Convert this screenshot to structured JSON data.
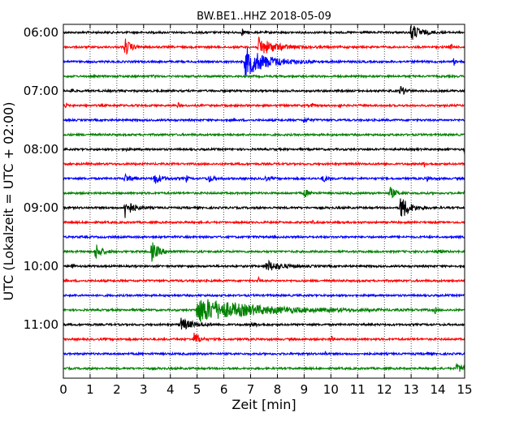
{
  "chart_data": {
    "type": "line",
    "title": "BW.BE1..HHZ 2018-05-09",
    "xlabel": "Zeit  [min]",
    "ylabel": "UTC (Lokalzeit = UTC + 02:00)",
    "xlim": [
      0,
      15
    ],
    "x_ticks": [
      "0",
      "1",
      "2",
      "3",
      "4",
      "5",
      "6",
      "7",
      "8",
      "9",
      "10",
      "11",
      "12",
      "13",
      "14",
      "15"
    ],
    "y_ticks": [
      {
        "label": "06:00",
        "trace_index": 0
      },
      {
        "label": "07:00",
        "trace_index": 4
      },
      {
        "label": "08:00",
        "trace_index": 8
      },
      {
        "label": "09:00",
        "trace_index": 12
      },
      {
        "label": "10:00",
        "trace_index": 16
      },
      {
        "label": "11:00",
        "trace_index": 20
      }
    ],
    "grid": "vertical-dotted",
    "colors": [
      "#000000",
      "#ff0000",
      "#0000ff",
      "#008000"
    ],
    "series": [
      {
        "start": "06:00",
        "color": "#000000",
        "events": [
          {
            "t": 6.7,
            "amp": 0.5,
            "dur": 0.1
          },
          {
            "t": 13.0,
            "amp": 1.0,
            "dur": 0.6
          }
        ]
      },
      {
        "start": "06:15",
        "color": "#ff0000",
        "events": [
          {
            "t": 2.3,
            "amp": 1.0,
            "dur": 0.4
          },
          {
            "t": 7.3,
            "amp": 1.0,
            "dur": 1.2
          },
          {
            "t": 14.5,
            "amp": 0.4,
            "dur": 0.1
          }
        ]
      },
      {
        "start": "06:30",
        "color": "#0000ff",
        "events": [
          {
            "t": 6.8,
            "amp": 1.6,
            "dur": 1.6
          },
          {
            "t": 14.6,
            "amp": 0.4,
            "dur": 0.1
          }
        ]
      },
      {
        "start": "06:45",
        "color": "#008000",
        "events": [
          {
            "t": 3.4,
            "amp": 0.3,
            "dur": 0.05
          }
        ]
      },
      {
        "start": "07:00",
        "color": "#000000",
        "events": [
          {
            "t": 0.3,
            "amp": 0.4,
            "dur": 0.1
          },
          {
            "t": 12.6,
            "amp": 0.6,
            "dur": 0.3
          }
        ]
      },
      {
        "start": "07:15",
        "color": "#ff0000",
        "events": [
          {
            "t": 0.1,
            "amp": 0.4,
            "dur": 0.05
          },
          {
            "t": 4.3,
            "amp": 0.3,
            "dur": 0.05
          },
          {
            "t": 9.3,
            "amp": 0.3,
            "dur": 0.05
          },
          {
            "t": 10.3,
            "amp": 0.3,
            "dur": 0.05
          }
        ]
      },
      {
        "start": "07:30",
        "color": "#0000ff",
        "events": [
          {
            "t": 9.0,
            "amp": 0.25,
            "dur": 0.3
          }
        ]
      },
      {
        "start": "07:45",
        "color": "#008000",
        "events": []
      },
      {
        "start": "08:00",
        "color": "#000000",
        "events": [
          {
            "t": 2.3,
            "amp": 0.3,
            "dur": 0.1
          },
          {
            "t": 15.0,
            "amp": 0.5,
            "dur": 0.05
          }
        ]
      },
      {
        "start": "08:15",
        "color": "#ff0000",
        "events": [
          {
            "t": 13.5,
            "amp": 0.3,
            "dur": 0.1
          }
        ]
      },
      {
        "start": "08:30",
        "color": "#0000ff",
        "events": [
          {
            "t": 2.3,
            "amp": 0.5,
            "dur": 0.4
          },
          {
            "t": 3.4,
            "amp": 0.6,
            "dur": 0.5
          },
          {
            "t": 4.6,
            "amp": 0.4,
            "dur": 0.1
          },
          {
            "t": 5.4,
            "amp": 0.4,
            "dur": 0.4
          },
          {
            "t": 7.5,
            "amp": 0.3,
            "dur": 0.3
          },
          {
            "t": 9.7,
            "amp": 0.4,
            "dur": 0.3
          },
          {
            "t": 13.6,
            "amp": 0.3,
            "dur": 0.2
          }
        ]
      },
      {
        "start": "08:45",
        "color": "#008000",
        "events": [
          {
            "t": 9.0,
            "amp": 0.5,
            "dur": 0.3
          },
          {
            "t": 12.2,
            "amp": 0.7,
            "dur": 0.4
          },
          {
            "t": 15.0,
            "amp": 0.3,
            "dur": 0.05
          }
        ]
      },
      {
        "start": "09:00",
        "color": "#000000",
        "events": [
          {
            "t": 2.3,
            "amp": 1.2,
            "dur": 0.5
          },
          {
            "t": 12.6,
            "amp": 1.4,
            "dur": 0.6
          }
        ]
      },
      {
        "start": "09:15",
        "color": "#ff0000",
        "events": [
          {
            "t": 9.3,
            "amp": 0.25,
            "dur": 0.05
          }
        ]
      },
      {
        "start": "09:30",
        "color": "#0000ff",
        "events": []
      },
      {
        "start": "09:45",
        "color": "#008000",
        "events": [
          {
            "t": 1.2,
            "amp": 1.0,
            "dur": 0.4
          },
          {
            "t": 3.3,
            "amp": 1.1,
            "dur": 0.5
          },
          {
            "t": 14.0,
            "amp": 0.3,
            "dur": 0.2
          }
        ]
      },
      {
        "start": "10:00",
        "color": "#000000",
        "events": [
          {
            "t": 0.3,
            "amp": 0.5,
            "dur": 0.1
          },
          {
            "t": 7.6,
            "amp": 0.6,
            "dur": 1.0
          }
        ]
      },
      {
        "start": "10:15",
        "color": "#ff0000",
        "events": [
          {
            "t": 7.3,
            "amp": 0.3,
            "dur": 0.1
          }
        ]
      },
      {
        "start": "10:30",
        "color": "#0000ff",
        "events": []
      },
      {
        "start": "10:45",
        "color": "#008000",
        "events": [
          {
            "t": 5.0,
            "amp": 1.4,
            "dur": 4.0
          },
          {
            "t": 13.9,
            "amp": 0.5,
            "dur": 0.05
          }
        ]
      },
      {
        "start": "11:00",
        "color": "#000000",
        "events": [
          {
            "t": 4.4,
            "amp": 0.7,
            "dur": 0.8
          },
          {
            "t": 7.0,
            "amp": 0.2,
            "dur": 0.6
          }
        ]
      },
      {
        "start": "11:15",
        "color": "#ff0000",
        "events": [
          {
            "t": 4.9,
            "amp": 0.9,
            "dur": 0.3
          },
          {
            "t": 10.0,
            "amp": 0.5,
            "dur": 0.1
          }
        ]
      },
      {
        "start": "11:30",
        "color": "#0000ff",
        "events": [
          {
            "t": 9.8,
            "amp": 0.3,
            "dur": 0.05
          },
          {
            "t": 13.6,
            "amp": 0.3,
            "dur": 0.05
          }
        ]
      },
      {
        "start": "11:45",
        "color": "#008000",
        "events": [
          {
            "t": 14.7,
            "amp": 0.4,
            "dur": 1.2
          }
        ]
      }
    ]
  }
}
